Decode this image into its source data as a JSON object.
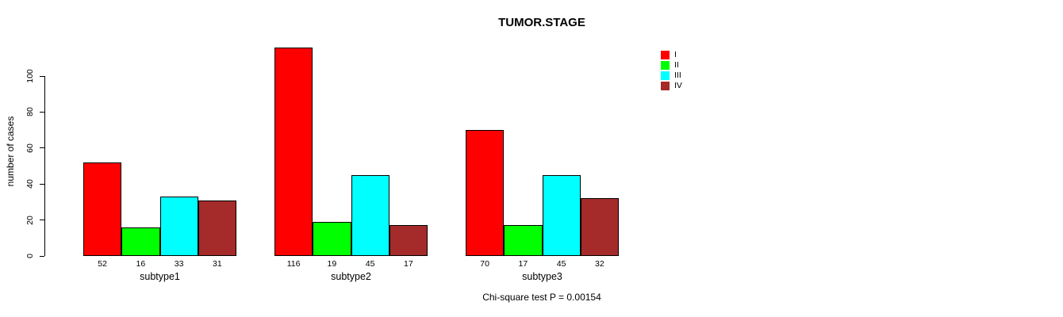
{
  "chart_data": {
    "type": "bar",
    "title": "TUMOR.STAGE",
    "xlabel": "",
    "ylabel": "number of cases",
    "categories": [
      "subtype1",
      "subtype2",
      "subtype3"
    ],
    "series": [
      {
        "name": "I",
        "color": "#FF0000",
        "values": [
          52,
          116,
          70
        ]
      },
      {
        "name": "II",
        "color": "#00FF00",
        "values": [
          16,
          19,
          17
        ]
      },
      {
        "name": "III",
        "color": "#00FFFF",
        "values": [
          33,
          45,
          45
        ]
      },
      {
        "name": "IV",
        "color": "#A52A2A",
        "values": [
          31,
          17,
          32
        ]
      }
    ],
    "yticks": [
      0,
      20,
      40,
      60,
      80,
      100
    ],
    "ylim": [
      0,
      120
    ],
    "grid": false,
    "bar_value_labels": true,
    "legend_position": "top-right",
    "annotation": "Chi-square test P = 0.00154",
    "bar_border_color": "#000000",
    "text_color": "#000000",
    "background_color": "#FFFFFF"
  }
}
